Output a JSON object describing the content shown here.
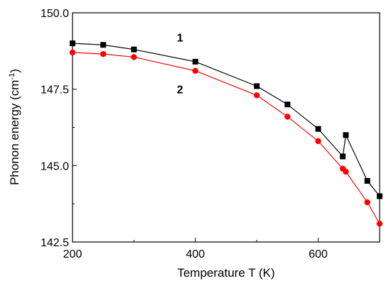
{
  "chart_data": {
    "type": "line",
    "title": "",
    "xlabel": "Temperature T (K)",
    "ylabel": {
      "prefix": "Phonon energy (cm",
      "superscript": "-1",
      "suffix": ")"
    },
    "xlim": [
      200,
      700
    ],
    "ylim": [
      142.5,
      150.0
    ],
    "x_ticks": [
      {
        "value": 200,
        "label": "200"
      },
      {
        "value": 400,
        "label": "400"
      },
      {
        "value": 600,
        "label": "600"
      }
    ],
    "y_ticks": [
      {
        "value": 142.5,
        "label": "142.5"
      },
      {
        "value": 145.0,
        "label": "145.0"
      },
      {
        "value": 147.5,
        "label": "147.5"
      },
      {
        "value": 150.0,
        "label": "150.0"
      }
    ],
    "grid": false,
    "series": [
      {
        "name": "1",
        "color": "#000000",
        "marker": "square",
        "x": [
          200,
          250,
          300,
          400,
          500,
          550,
          600,
          640,
          645,
          680,
          700
        ],
        "y": [
          149.0,
          148.95,
          148.8,
          148.4,
          147.6,
          147.0,
          146.2,
          145.3,
          146.0,
          144.5,
          144.0
        ]
      },
      {
        "name": "2",
        "color": "#ff0000",
        "marker": "circle",
        "x": [
          200,
          250,
          300,
          400,
          500,
          550,
          600,
          640,
          645,
          680,
          700
        ],
        "y": [
          148.7,
          148.65,
          148.55,
          148.1,
          147.3,
          146.6,
          145.8,
          144.9,
          144.8,
          143.8,
          143.1
        ]
      }
    ],
    "annotations": [
      {
        "text": "1",
        "x": 375,
        "y": 149.2
      },
      {
        "text": "2",
        "x": 375,
        "y": 147.5
      }
    ]
  }
}
